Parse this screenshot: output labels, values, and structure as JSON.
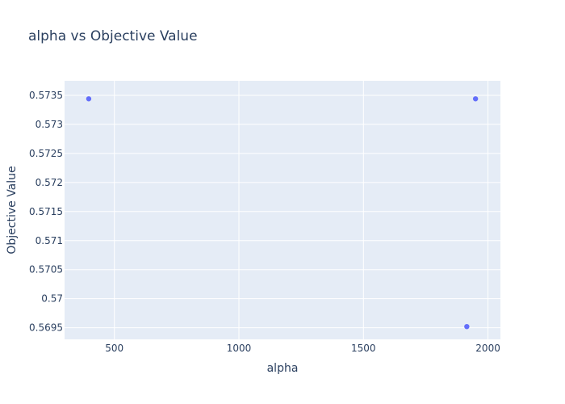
{
  "chart_data": {
    "type": "scatter",
    "title": "alpha vs Objective Value",
    "xlabel": "alpha",
    "ylabel": "Objective Value",
    "xlim": [
      300,
      2050
    ],
    "ylim": [
      0.5693,
      0.57375
    ],
    "xticks": [
      500,
      1000,
      1500,
      2000
    ],
    "xtick_labels": [
      "500",
      "1000",
      "1500",
      "2000"
    ],
    "yticks": [
      0.5695,
      0.57,
      0.5705,
      0.571,
      0.5715,
      0.572,
      0.5725,
      0.573,
      0.5735
    ],
    "ytick_labels": [
      "0.5695",
      "0.57",
      "0.5705",
      "0.571",
      "0.5715",
      "0.572",
      "0.5725",
      "0.573",
      "0.5735"
    ],
    "grid": true,
    "series": [
      {
        "x": [
          397,
          1950,
          1915
        ],
        "y": [
          0.57344,
          0.57344,
          0.56952
        ]
      }
    ],
    "colors": {
      "plot_background": "#e5ecf6",
      "marker": "#636efa",
      "text": "#2a3f5f",
      "grid": "#ffffff"
    }
  }
}
